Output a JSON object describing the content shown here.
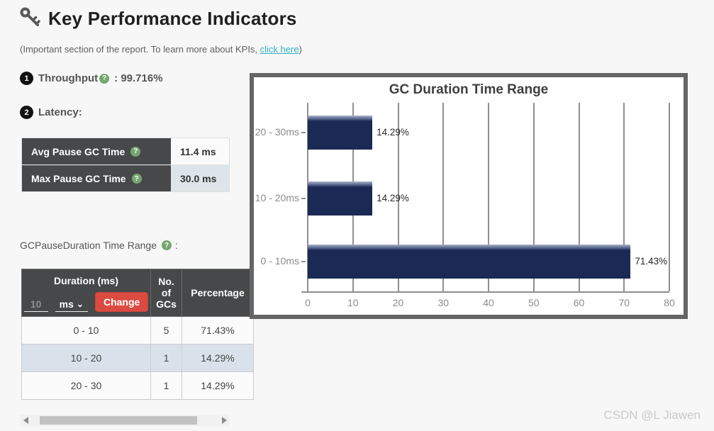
{
  "header": {
    "title": "Key Performance Indicators",
    "subtitle_prefix": "(Important section of the report. To learn more about KPIs, ",
    "subtitle_link": "click here",
    "subtitle_suffix": ")"
  },
  "icons": {
    "help_glyph": "?",
    "chevron_down": "⌄"
  },
  "kpi": {
    "throughput": {
      "index": "1",
      "label": "Throughput",
      "colon": ":",
      "value": "99.716%"
    },
    "latency": {
      "index": "2",
      "label": "Latency:"
    },
    "latency_table": [
      {
        "label": "Avg Pause GC Time",
        "value": "11.4 ms"
      },
      {
        "label": "Max Pause GC Time",
        "value": "30.0 ms"
      }
    ]
  },
  "duration_section": {
    "label": "GCPauseDuration Time Range",
    "suffix": ":",
    "table": {
      "col_duration": "Duration (ms)",
      "col_count": "No. of GCs",
      "col_percentage": "Percentage",
      "input_value": "10",
      "unit": "ms",
      "change_label": "Change",
      "rows": [
        {
          "duration": "0 - 10",
          "count": "5",
          "percentage": "71.43%"
        },
        {
          "duration": "10 - 20",
          "count": "1",
          "percentage": "14.29%"
        },
        {
          "duration": "20 - 30",
          "count": "1",
          "percentage": "14.29%"
        }
      ]
    }
  },
  "chart_data": {
    "type": "bar",
    "orientation": "horizontal",
    "title": "GC Duration Time Range",
    "categories": [
      "20 - 30ms",
      "10 - 20ms",
      "0 - 10ms"
    ],
    "values": [
      14.29,
      14.29,
      71.43
    ],
    "value_labels": [
      "14.29%",
      "14.29%",
      "71.43%"
    ],
    "xlim": [
      0,
      80
    ],
    "xticks": [
      0,
      10,
      20,
      30,
      40,
      50,
      60,
      70,
      80
    ],
    "grid": true,
    "legend": false,
    "bar_color": "#1b2a55",
    "bar_bevel_color": "#9aa5c0"
  },
  "watermark": "CSDN @L Jiawen",
  "colors": {
    "link": "#31b0c6",
    "badge_bg": "#111111",
    "help_green": "#76a670",
    "table_header_bg": "#47484a",
    "change_button_bg": "#dc4b42",
    "row_highlight": "#d9e2eb",
    "bar_navy": "#1b2a55",
    "chart_border": "#656565"
  }
}
